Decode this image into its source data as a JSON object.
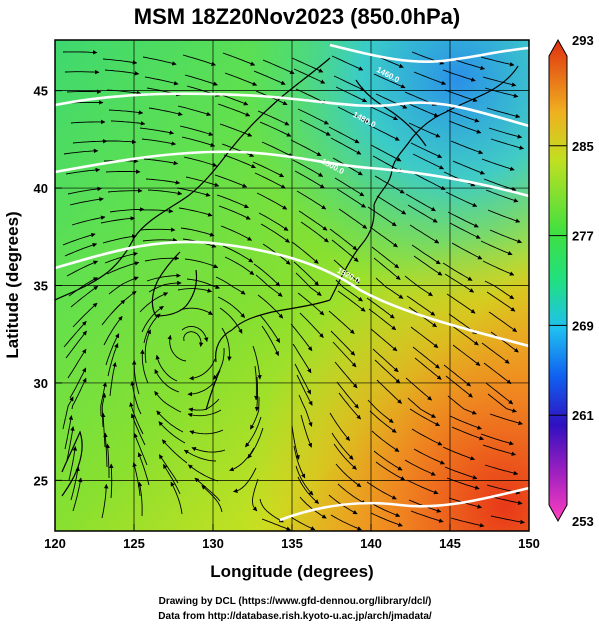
{
  "title": "MSM 18Z20Nov2023 (850.0hPa)",
  "x_axis": {
    "label": "Longitude (degrees)",
    "min": 120,
    "max": 150,
    "ticks": [
      120,
      125,
      130,
      135,
      140,
      145,
      150
    ]
  },
  "y_axis": {
    "label": "Latitude  (degrees)",
    "min": 22.4,
    "max": 47.6,
    "ticks": [
      25,
      30,
      35,
      40,
      45
    ]
  },
  "colorbar": {
    "min": 253,
    "max": 293,
    "labels": [
      253,
      261,
      269,
      277,
      285,
      293
    ]
  },
  "contours": [
    {
      "label": "1460.0",
      "lon": 141.0,
      "lat": 45.7
    },
    {
      "label": "1480.0",
      "lon": 139.5,
      "lat": 43.4
    },
    {
      "label": "1500.0",
      "lon": 137.5,
      "lat": 41.0
    },
    {
      "label": "1520.0",
      "lon": 138.5,
      "lat": 35.4
    }
  ],
  "credits": {
    "line1": "Drawing by DCL (https://www.gfd-dennou.org/library/dcl/)",
    "line2": "Data from http://database.rish.kyoto-u.ac.jp/arch/jmadata/"
  }
}
